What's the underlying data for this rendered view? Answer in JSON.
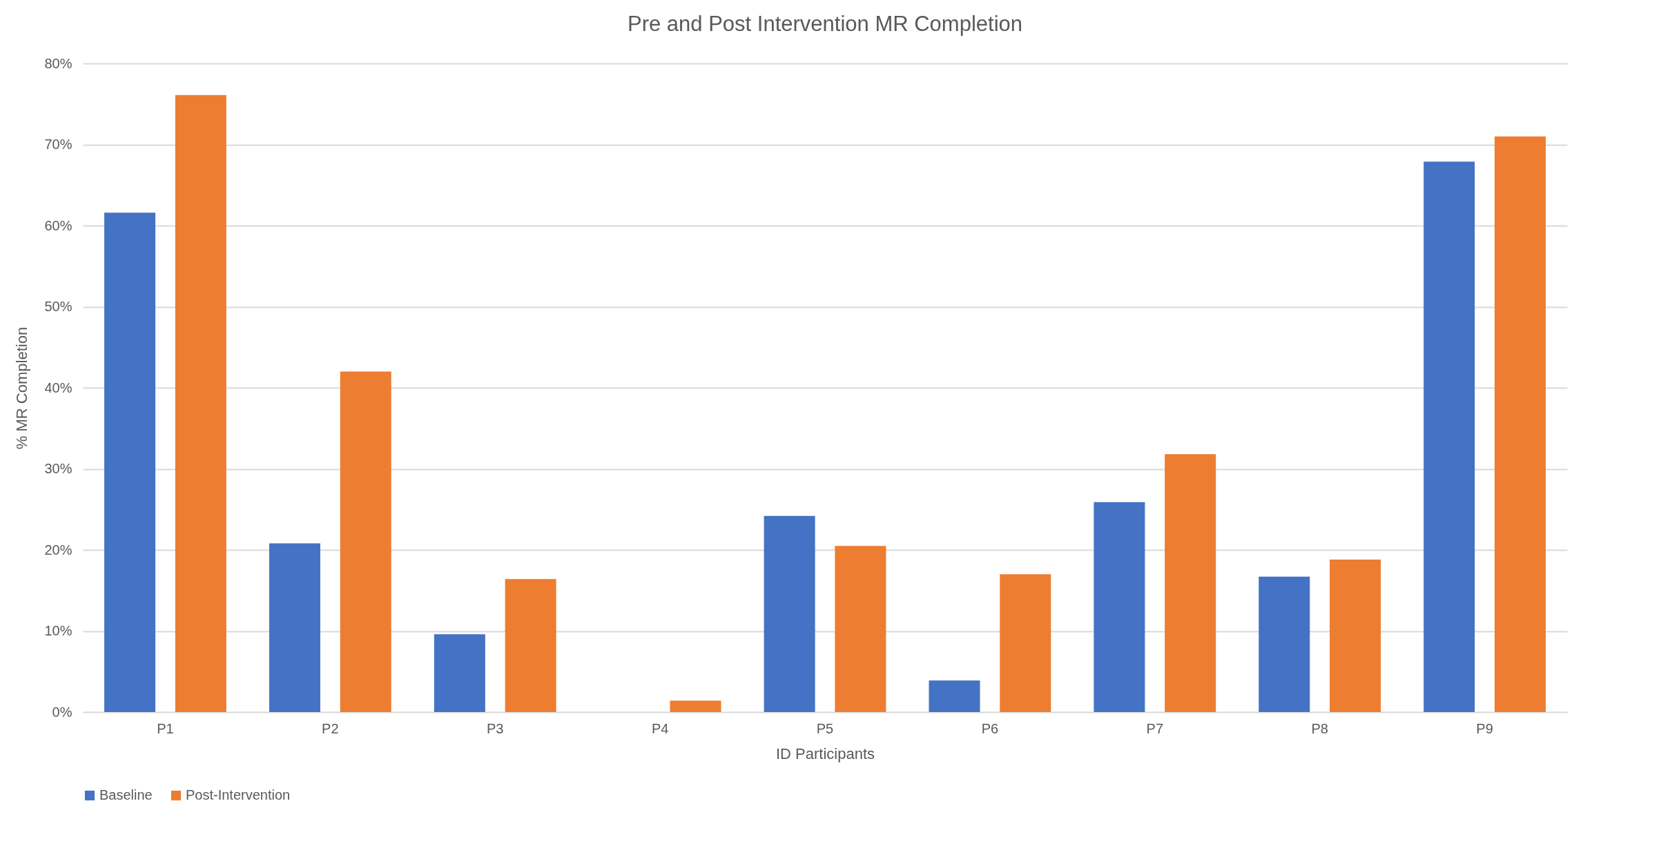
{
  "chart_data": {
    "type": "bar",
    "title": "Pre and Post Intervention MR Completion",
    "xlabel": "ID Participants",
    "ylabel": "% MR Completion",
    "categories": [
      "P1",
      "P2",
      "P3",
      "P4",
      "P5",
      "P6",
      "P7",
      "P8",
      "P9"
    ],
    "series": [
      {
        "name": "Baseline",
        "color": "#4472c4",
        "values": [
          61.6,
          20.8,
          9.6,
          0,
          24.2,
          3.9,
          25.9,
          16.7,
          67.9
        ]
      },
      {
        "name": "Post-Intervention",
        "color": "#ed7d31",
        "values": [
          76.1,
          42.0,
          16.4,
          1.4,
          20.5,
          17.0,
          31.8,
          18.8,
          71.0
        ]
      }
    ],
    "ylim": [
      0,
      80
    ],
    "yticks": [
      {
        "value": 0,
        "label": "0%"
      },
      {
        "value": 10,
        "label": "10%"
      },
      {
        "value": 20,
        "label": "20%"
      },
      {
        "value": 30,
        "label": "30%"
      },
      {
        "value": 40,
        "label": "40%"
      },
      {
        "value": 50,
        "label": "50%"
      },
      {
        "value": 60,
        "label": "60%"
      },
      {
        "value": 70,
        "label": "70%"
      },
      {
        "value": 80,
        "label": "80%"
      }
    ],
    "grid": "y",
    "legend": "bottom"
  }
}
